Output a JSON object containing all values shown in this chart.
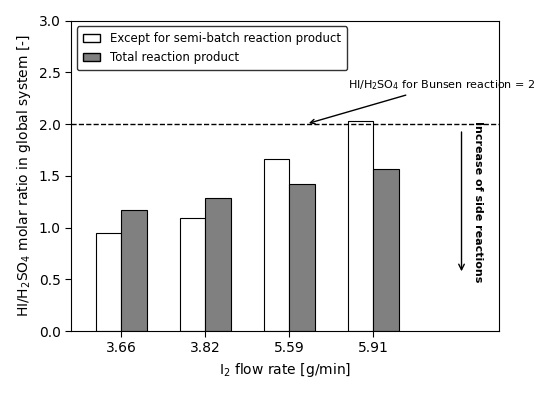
{
  "categories": [
    "3.66",
    "3.82",
    "5.59",
    "5.91"
  ],
  "white_bars": [
    0.95,
    1.09,
    1.66,
    2.03
  ],
  "gray_bars": [
    1.17,
    1.29,
    1.42,
    1.57
  ],
  "white_bar_color": "#FFFFFF",
  "gray_bar_color": "#808080",
  "bar_edge_color": "#000000",
  "ylim": [
    0.0,
    3.0
  ],
  "yticks": [
    0.0,
    0.5,
    1.0,
    1.5,
    2.0,
    2.5,
    3.0
  ],
  "xlabel": "I$_2$ flow rate [g/min]",
  "ylabel": "HI/H$_2$SO$_4$ molar ratio in global system [-]",
  "dashed_line_y": 2.0,
  "dashed_line_label": "HI/H$_2$SO$_4$ for Bunsen reaction = 2",
  "legend_label_white": "Except for semi-batch reaction product",
  "legend_label_gray": "Total reaction product",
  "side_annotation": "Increase of side reactions",
  "bar_width": 0.3,
  "figsize": [
    5.51,
    3.94
  ],
  "dpi": 100
}
